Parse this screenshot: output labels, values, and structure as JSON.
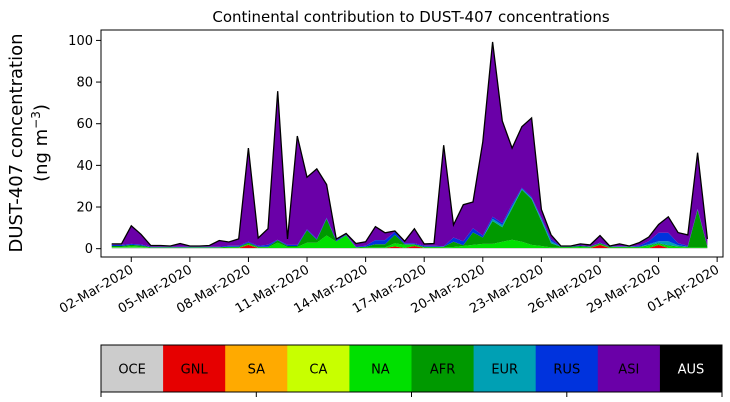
{
  "chart_data": {
    "type": "area",
    "stacked": true,
    "title": "Continental contribution to DUST-407 concentrations",
    "ylabel_line1": "DUST-407 concentration",
    "ylabel_line2_prefix": "(ng m",
    "ylabel_line2_sup": "−3",
    "ylabel_line2_suffix": ")",
    "ylim": [
      -4,
      105
    ],
    "yticks": [
      0,
      20,
      40,
      60,
      80,
      100
    ],
    "ytick_labels": [
      "0",
      "20",
      "40",
      "60",
      "80",
      "100"
    ],
    "xticks": [
      2,
      5,
      8,
      11,
      14,
      17,
      20,
      23,
      26,
      29,
      32
    ],
    "xtick_labels": [
      "02-Mar-2020",
      "05-Mar-2020",
      "08-Mar-2020",
      "11-Mar-2020",
      "14-Mar-2020",
      "17-Mar-2020",
      "20-Mar-2020",
      "23-Mar-2020",
      "26-Mar-2020",
      "29-Mar-2020",
      "01-Apr-2020"
    ],
    "x_days_march": [
      1,
      1.5,
      2,
      2.5,
      3,
      3.5,
      4,
      4.5,
      5,
      5.5,
      6,
      6.5,
      7,
      7.5,
      8,
      8.5,
      9,
      9.5,
      10,
      10.5,
      11,
      11.5,
      12,
      12.5,
      13,
      13.5,
      14,
      14.5,
      15,
      15.5,
      16,
      16.5,
      17,
      17.5,
      18,
      18.5,
      19,
      19.5,
      20,
      20.5,
      21,
      21.5,
      22,
      22.5,
      23,
      23.5,
      24,
      24.5,
      25,
      25.5,
      26,
      26.5,
      27,
      27.5,
      28,
      28.5,
      29,
      29.5,
      30,
      30.5,
      31,
      31.5
    ],
    "series": [
      {
        "name": "OCE",
        "color": "#cccccc",
        "values": [
          0.5,
          0.5,
          0.5,
          0.5,
          0.3,
          0.3,
          0.3,
          0.3,
          0.3,
          0.3,
          0.3,
          0.3,
          0.3,
          0.3,
          0.3,
          0.3,
          0.3,
          0.3,
          0.3,
          0.3,
          0.3,
          0.3,
          0.3,
          0.3,
          0.3,
          0.3,
          0.3,
          0.3,
          0.3,
          0.3,
          0.3,
          0.3,
          0.3,
          0.3,
          0.3,
          0.3,
          0.3,
          0.3,
          0.3,
          0.3,
          0.3,
          0.3,
          0.3,
          0.3,
          0.3,
          0.3,
          0.3,
          0.3,
          0.3,
          0.3,
          0.3,
          0.3,
          0.3,
          0.3,
          0.3,
          0.3,
          0.3,
          0.3,
          0.3,
          0.3,
          0.3,
          0.3
        ]
      },
      {
        "name": "GNL",
        "color": "#e60000",
        "values": [
          0,
          0,
          0,
          0,
          0,
          0,
          0,
          0,
          0,
          0,
          0,
          0,
          0,
          0,
          1.5,
          0,
          0,
          0,
          0,
          0,
          0,
          0,
          0,
          0,
          0,
          0,
          0,
          0,
          0,
          0.8,
          0,
          1.0,
          0,
          0,
          0,
          0,
          0,
          0,
          0,
          0,
          0,
          0,
          0,
          0,
          0,
          0,
          0,
          0,
          0,
          0,
          1.5,
          0,
          0,
          0,
          0,
          0,
          1.5,
          0,
          0,
          0,
          0,
          0
        ]
      },
      {
        "name": "SA",
        "color": "#ffaa00",
        "values": [
          0,
          0,
          0,
          0,
          0,
          0,
          0,
          0,
          0,
          0,
          0,
          0,
          0,
          0,
          0,
          0,
          0,
          0,
          0,
          0,
          0,
          0,
          0,
          0,
          0,
          0,
          0,
          0,
          0,
          0,
          0,
          0,
          0,
          0,
          0,
          0,
          0,
          0,
          0,
          0,
          0,
          0,
          0,
          0,
          0,
          0,
          0,
          0,
          0,
          0,
          0,
          0,
          0,
          0,
          0,
          0,
          0,
          0,
          0,
          0,
          0,
          0
        ]
      },
      {
        "name": "CA",
        "color": "#c8ff00",
        "values": [
          0,
          0,
          0,
          0,
          0,
          0,
          0,
          0,
          0,
          0,
          0,
          0,
          0,
          0,
          0,
          0,
          0,
          0,
          0,
          0,
          0,
          0,
          0,
          0,
          0,
          0,
          0,
          0,
          0,
          0,
          0,
          0,
          0,
          0,
          0,
          0,
          0,
          0,
          0,
          0,
          0,
          0,
          0,
          0,
          0,
          0,
          0,
          0,
          0,
          0,
          0,
          0,
          0,
          0,
          0,
          0,
          0,
          0,
          0,
          0,
          0,
          0
        ]
      },
      {
        "name": "NA",
        "color": "#00e000",
        "values": [
          0.3,
          0.3,
          0.8,
          0.5,
          0.2,
          0.2,
          0.2,
          0.2,
          0.2,
          0.2,
          0.2,
          0.2,
          0.3,
          0.3,
          0.5,
          0.3,
          0.3,
          2.5,
          0.5,
          0.5,
          2.5,
          2.5,
          6,
          3,
          6,
          0.2,
          0.3,
          0.3,
          0.3,
          1.5,
          1.5,
          0.5,
          0.3,
          0.3,
          0.3,
          0.5,
          1,
          1.5,
          2,
          2,
          3,
          4,
          3,
          1.5,
          1,
          0.3,
          0.3,
          0.3,
          0.5,
          0.3,
          0.3,
          0.3,
          0.3,
          0.3,
          0.3,
          1,
          0.5,
          1,
          0.5,
          0.3,
          0.3,
          0.3
        ]
      },
      {
        "name": "AFR",
        "color": "#009900",
        "values": [
          0.5,
          0.5,
          0.5,
          0.5,
          0.2,
          0.2,
          0.2,
          0.2,
          0.2,
          0.2,
          0.2,
          0.2,
          0.3,
          0.3,
          0.5,
          0.3,
          0.3,
          1.2,
          0.5,
          0.5,
          6,
          1.5,
          8,
          0.3,
          0.2,
          0.2,
          0.3,
          1.5,
          1.5,
          4,
          0.3,
          0.3,
          0.3,
          0.3,
          0.3,
          2.5,
          0.3,
          6,
          3,
          11,
          7,
          15,
          25,
          22,
          12,
          2,
          0.3,
          0.3,
          0.5,
          0.3,
          0.5,
          0.3,
          0.3,
          0.3,
          0.3,
          0.3,
          0.3,
          0.3,
          0.3,
          0.3,
          18,
          0.3
        ]
      },
      {
        "name": "EUR",
        "color": "#00a0b4",
        "values": [
          0,
          0,
          0,
          0,
          0,
          0,
          0,
          0,
          0,
          0,
          0,
          0,
          0,
          0,
          0,
          0,
          0,
          0,
          0,
          0,
          0,
          0,
          0,
          0,
          0,
          0,
          0,
          0,
          0,
          0,
          0,
          0,
          0,
          0,
          0,
          0,
          0,
          0,
          0,
          1,
          1,
          1,
          0.5,
          0.5,
          1,
          1,
          0,
          0,
          0,
          0,
          0,
          0,
          0,
          0,
          0,
          0.5,
          1,
          2,
          0.5,
          0,
          0,
          0
        ]
      },
      {
        "name": "RUS",
        "color": "#0033dd",
        "values": [
          0.5,
          0.5,
          0.5,
          0.5,
          0.2,
          0.2,
          0.2,
          0.2,
          0.2,
          0.2,
          0.2,
          0.2,
          0.5,
          0.5,
          0.5,
          0.5,
          1,
          0.3,
          0.5,
          0.5,
          0.5,
          0.5,
          0.5,
          0.5,
          0.3,
          0.3,
          0.5,
          2,
          2,
          1.5,
          0.5,
          0.5,
          0.5,
          0.5,
          0.3,
          2,
          2,
          2,
          1,
          1,
          1,
          1,
          0.5,
          0.5,
          0.5,
          1,
          0.2,
          0.2,
          0.2,
          0.2,
          0.3,
          0.2,
          0.3,
          0.2,
          0.5,
          1.5,
          4,
          4,
          1,
          0.5,
          0.5,
          0.3
        ]
      },
      {
        "name": "ASI",
        "color": "#6a00a8",
        "values": [
          0.5,
          0.5,
          8.7,
          4.9,
          0.6,
          0.6,
          0.4,
          1.6,
          0.4,
          0.4,
          0.6,
          3,
          1.8,
          3.3,
          45,
          3.7,
          7.7,
          71.3,
          2.9,
          52.3,
          25,
          33.5,
          16,
          0.5,
          0.5,
          1.5,
          1.9,
          6.5,
          3.5,
          0.4,
          1,
          7,
          0.9,
          1.1,
          48.5,
          6.1,
          17.5,
          12.6,
          45,
          84,
          49,
          27,
          29.3,
          38,
          4,
          2,
          0.2,
          0.2,
          0.8,
          0.7,
          3.4,
          0.2,
          1.1,
          0.2,
          1.4,
          2,
          4,
          7.7,
          5.1,
          5.2,
          27,
          3.5
        ]
      },
      {
        "name": "AUS",
        "color": "#000000",
        "values": [
          0,
          0,
          0,
          0,
          0,
          0,
          0,
          0,
          0,
          0,
          0,
          0,
          0,
          0,
          0,
          0,
          0,
          0,
          0,
          0,
          0,
          0,
          0,
          0,
          0,
          0,
          0,
          0,
          0,
          0,
          0,
          0,
          0,
          0,
          0,
          0,
          0,
          0,
          0,
          0,
          0,
          0,
          0,
          0,
          0,
          0,
          0,
          0,
          0,
          0,
          0,
          0,
          0,
          0,
          0,
          0,
          0,
          0,
          0,
          0,
          0,
          0
        ]
      }
    ]
  },
  "legend": {
    "items": [
      {
        "label": "OCE",
        "color": "#cccccc",
        "text_color": "#000000"
      },
      {
        "label": "GNL",
        "color": "#e60000",
        "text_color": "#000000"
      },
      {
        "label": "SA",
        "color": "#ffaa00",
        "text_color": "#000000"
      },
      {
        "label": "CA",
        "color": "#c8ff00",
        "text_color": "#000000"
      },
      {
        "label": "NA",
        "color": "#00e000",
        "text_color": "#000000"
      },
      {
        "label": "AFR",
        "color": "#009900",
        "text_color": "#000000"
      },
      {
        "label": "EUR",
        "color": "#00a0b4",
        "text_color": "#000000"
      },
      {
        "label": "RUS",
        "color": "#0033dd",
        "text_color": "#000000"
      },
      {
        "label": "ASI",
        "color": "#6a00a8",
        "text_color": "#000000"
      },
      {
        "label": "AUS",
        "color": "#000000",
        "text_color": "#ffffff"
      }
    ]
  }
}
